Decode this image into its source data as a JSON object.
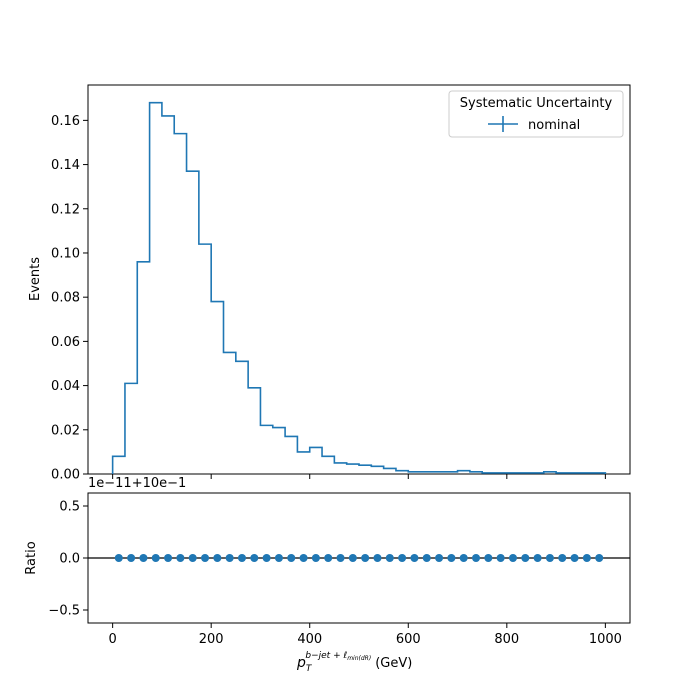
{
  "chart_data": [
    {
      "type": "step",
      "ylabel": "Events",
      "xlim": [
        -50,
        1050
      ],
      "ylim": [
        0,
        0.176
      ],
      "yticks": [
        0.0,
        0.02,
        0.04,
        0.06,
        0.08,
        0.1,
        0.12,
        0.14,
        0.16
      ],
      "ytick_labels": [
        "0.00",
        "0.02",
        "0.04",
        "0.06",
        "0.08",
        "0.10",
        "0.12",
        "0.14",
        "0.16"
      ],
      "legend": {
        "title": "Systematic Uncertainty",
        "entries": [
          "nominal"
        ],
        "location": "top-right"
      },
      "bin_width": 25,
      "bin_edges_start": 0,
      "series": [
        {
          "name": "nominal",
          "color": "#1f77b4",
          "values": [
            0.008,
            0.041,
            0.096,
            0.168,
            0.162,
            0.154,
            0.137,
            0.104,
            0.078,
            0.055,
            0.051,
            0.039,
            0.022,
            0.021,
            0.017,
            0.01,
            0.012,
            0.008,
            0.005,
            0.0045,
            0.004,
            0.0035,
            0.0025,
            0.0015,
            0.001,
            0.001,
            0.001,
            0.001,
            0.0015,
            0.001,
            0.0005,
            0.0005,
            0.0005,
            0.0005,
            0.0005,
            0.001,
            0.0005,
            0.0005,
            0.0005,
            0.0005
          ]
        }
      ]
    },
    {
      "type": "scatter",
      "ylabel": "Ratio",
      "xlabel_main": "p",
      "xlabel_sub": "T",
      "xlabel_sup": "b−jet + ℓ",
      "xlabel_sup_sub": "min(dR)",
      "xlabel_unit": "(GeV)",
      "offset_text": "1e−11+10e−1",
      "xlim": [
        -50,
        1050
      ],
      "ylim": [
        -0.625,
        0.625
      ],
      "xticks": [
        0,
        200,
        400,
        600,
        800,
        1000
      ],
      "xtick_labels": [
        "0",
        "200",
        "400",
        "600",
        "800",
        "1000"
      ],
      "yticks": [
        -0.5,
        0.0,
        0.5
      ],
      "ytick_labels": [
        "−0.5",
        "0.0",
        "0.5"
      ],
      "reference_line": 0.0,
      "color": "#1f77b4",
      "x": [
        12.5,
        37.5,
        62.5,
        87.5,
        112.5,
        137.5,
        162.5,
        187.5,
        212.5,
        237.5,
        262.5,
        287.5,
        312.5,
        337.5,
        362.5,
        387.5,
        412.5,
        437.5,
        462.5,
        487.5,
        512.5,
        537.5,
        562.5,
        587.5,
        612.5,
        637.5,
        662.5,
        687.5,
        712.5,
        737.5,
        762.5,
        787.5,
        812.5,
        837.5,
        862.5,
        887.5,
        912.5,
        937.5,
        962.5,
        987.5
      ],
      "y": [
        0,
        0,
        0,
        0,
        0,
        0,
        0,
        0,
        0,
        0,
        0,
        0,
        0,
        0,
        0,
        0,
        0,
        0,
        0,
        0,
        0,
        0,
        0,
        0,
        0,
        0,
        0,
        0,
        0,
        0,
        0,
        0,
        0,
        0,
        0,
        0,
        0,
        0,
        0,
        0
      ]
    }
  ]
}
